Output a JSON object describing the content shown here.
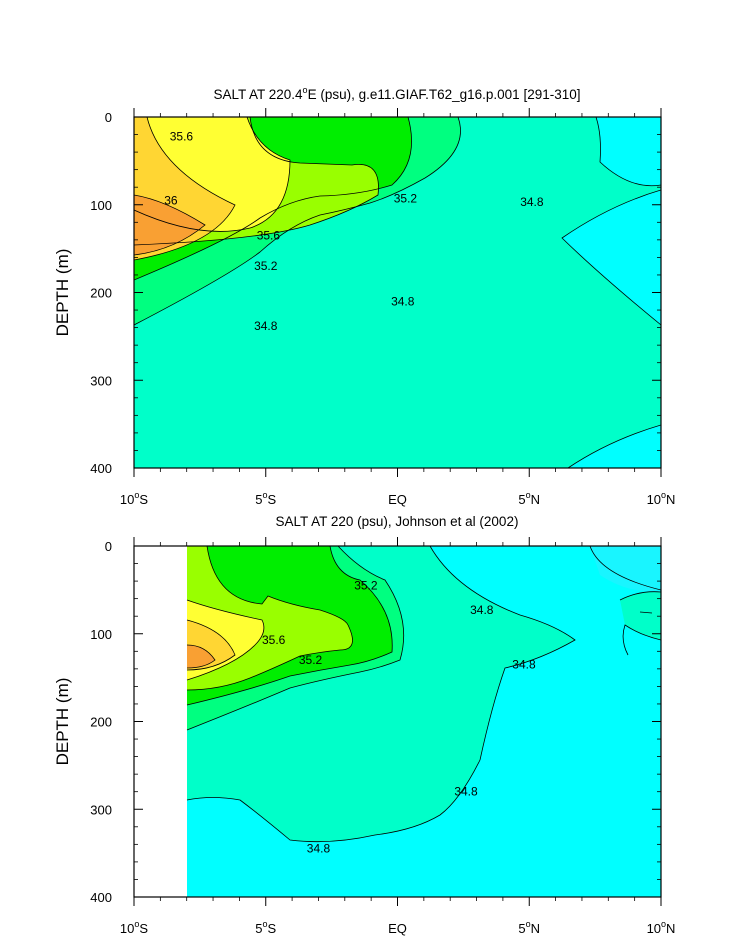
{
  "colors": {
    "c_34_6": "#19f5ff",
    "c_34_8": "#00ffff",
    "c_35_0": "#00ffc9",
    "c_35_2": "#00ff80",
    "c_35_4": "#00ee00",
    "c_35_6": "#99ff00",
    "c_35_8": "#ffff33",
    "c_36_0": "#ffd633",
    "c_36_2": "#f9a033",
    "frame": "#000000",
    "contour_line": "#000000"
  },
  "chart_data": [
    {
      "type": "contour",
      "title": "SALT AT 220.4°E (psu), g.e11.GIAF.T62_g16.p.001 [291-310]",
      "title_parts": {
        "pre": "SALT AT 220.4",
        "deg": "o",
        "post": "E (psu), g.e11.GIAF.T62_g16.p.001 [291-310]"
      },
      "xlabel": "",
      "ylabel": "DEPTH (m)",
      "xlim": [
        -10,
        10
      ],
      "ylim": [
        400,
        0
      ],
      "x_ticks": [
        {
          "value": -10,
          "num": "10",
          "deg": "o",
          "hemi": "S"
        },
        {
          "value": -5,
          "num": "5",
          "deg": "o",
          "hemi": "S"
        },
        {
          "value": 0,
          "num": "EQ",
          "deg": "",
          "hemi": ""
        },
        {
          "value": 5,
          "num": "5",
          "deg": "o",
          "hemi": "N"
        },
        {
          "value": 10,
          "num": "10",
          "deg": "o",
          "hemi": "N"
        }
      ],
      "y_ticks": [
        0,
        100,
        200,
        300,
        400
      ],
      "contour_labels": [
        {
          "text": "35.6",
          "lat": -8.2,
          "depth": 22
        },
        {
          "text": "36",
          "lat": -8.6,
          "depth": 95
        },
        {
          "text": "35.6",
          "lat": -4.9,
          "depth": 135
        },
        {
          "text": "35.2",
          "lat": -5.0,
          "depth": 170
        },
        {
          "text": "35.2",
          "lat": 0.3,
          "depth": 93
        },
        {
          "text": "34.8",
          "lat": 5.1,
          "depth": 97
        },
        {
          "text": "34.8",
          "lat": 0.2,
          "depth": 210
        },
        {
          "text": "34.8",
          "lat": -5.0,
          "depth": 238
        }
      ],
      "salinity_regions": [
        {
          "range": "35.0-35.2",
          "lat": 3,
          "depth": 300
        },
        {
          "range": "35.2-35.4",
          "lat": -3.3,
          "depth": 70
        },
        {
          "range": "34.8-35.0",
          "lat": 9,
          "depth": 50
        },
        {
          "range": "35.8-36.0",
          "lat": -9.3,
          "depth": 50
        },
        {
          "range": "36.0-36.2",
          "lat": -9.5,
          "depth": 125
        }
      ]
    },
    {
      "type": "contour",
      "title": "SALT AT 220 (psu), Johnson et al (2002)",
      "xlabel": "",
      "ylabel": "DEPTH (m)",
      "xlim": [
        -10,
        10
      ],
      "ylim": [
        400,
        0
      ],
      "data_lat_range": [
        -8,
        10
      ],
      "x_ticks": [
        {
          "value": -10,
          "num": "10",
          "deg": "o",
          "hemi": "S"
        },
        {
          "value": -5,
          "num": "5",
          "deg": "o",
          "hemi": "S"
        },
        {
          "value": 0,
          "num": "EQ",
          "deg": "",
          "hemi": ""
        },
        {
          "value": 5,
          "num": "5",
          "deg": "o",
          "hemi": "N"
        },
        {
          "value": 10,
          "num": "10",
          "deg": "o",
          "hemi": "N"
        }
      ],
      "y_ticks": [
        0,
        100,
        200,
        300,
        400
      ],
      "contour_labels": [
        {
          "text": "35.2",
          "lat": -1.2,
          "depth": 45
        },
        {
          "text": "34.8",
          "lat": 3.2,
          "depth": 73
        },
        {
          "text": "35.6",
          "lat": -4.7,
          "depth": 107
        },
        {
          "text": "35.2",
          "lat": -3.3,
          "depth": 130
        },
        {
          "text": "34.8",
          "lat": 4.8,
          "depth": 135
        },
        {
          "text": "34.8",
          "lat": 2.6,
          "depth": 280
        },
        {
          "text": "34.8",
          "lat": -3.0,
          "depth": 345
        }
      ],
      "salinity_regions": [
        {
          "range": "35.0-35.2",
          "lat": 1,
          "depth": 250
        },
        {
          "range": "35.2-35.4",
          "lat": -3,
          "depth": 40
        },
        {
          "range": "34.8-35.0",
          "lat": 4,
          "depth": 360
        },
        {
          "range": "34.6-34.8",
          "lat": 9.2,
          "depth": 35
        },
        {
          "range": "36.0-36.2",
          "lat": -7.6,
          "depth": 130
        }
      ]
    }
  ]
}
